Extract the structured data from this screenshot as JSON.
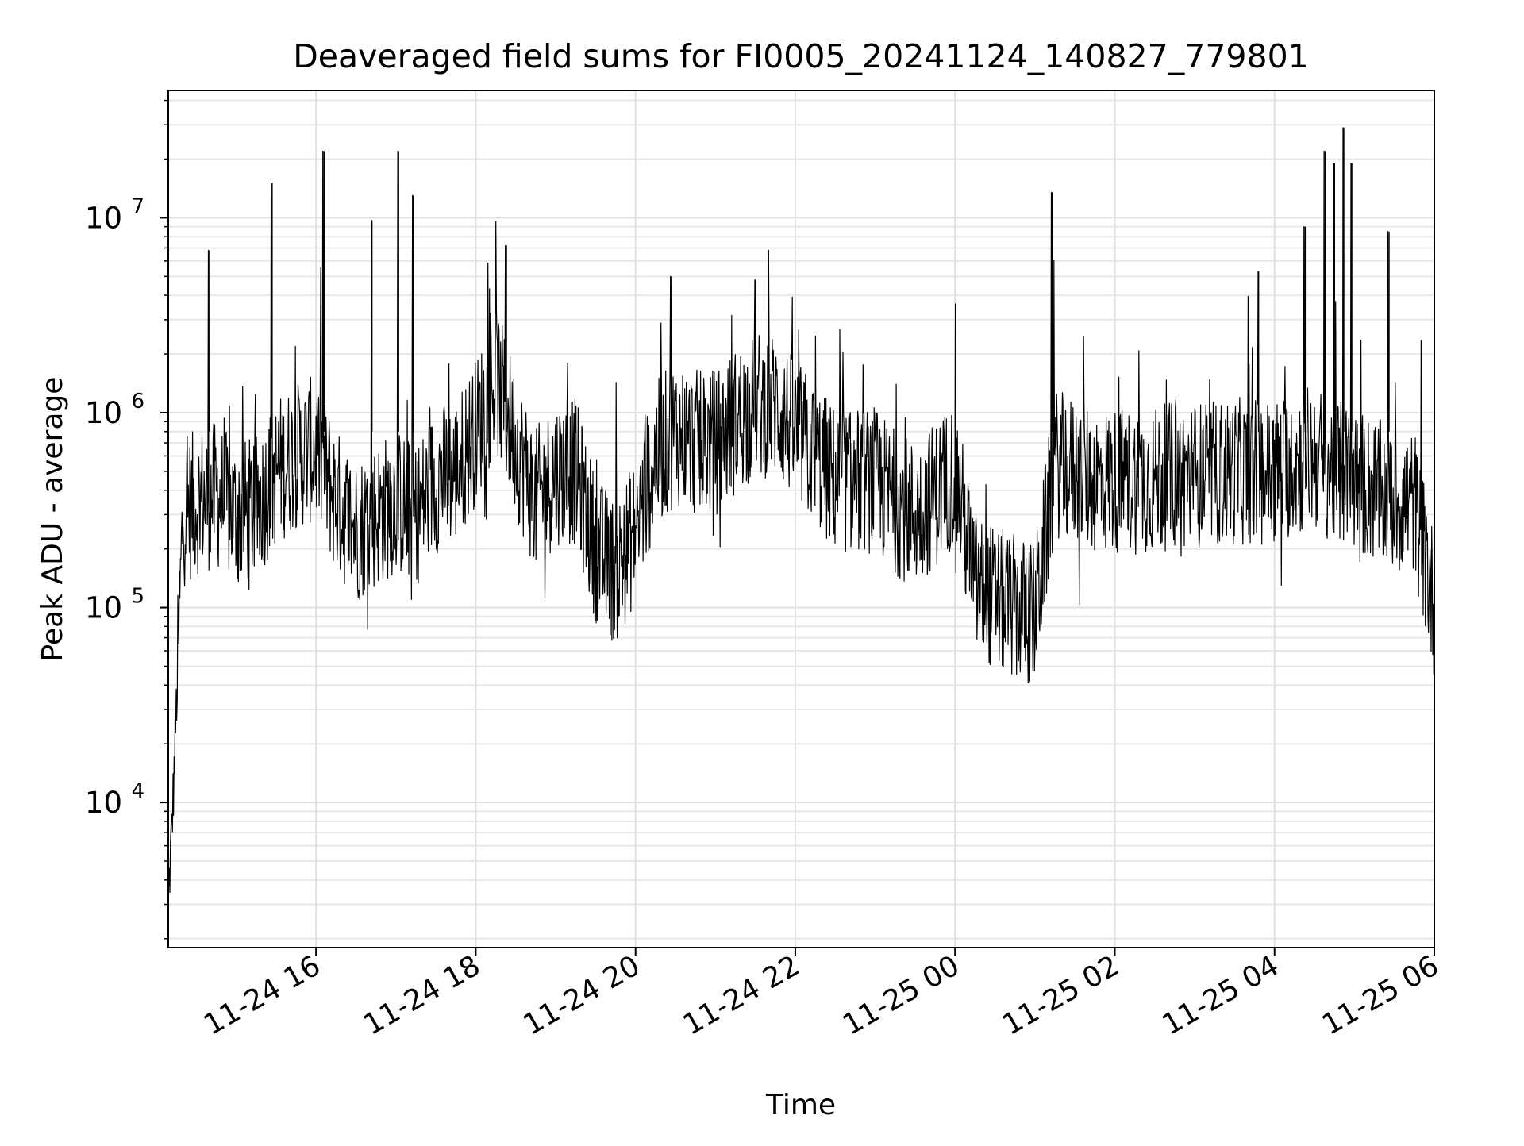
{
  "chart_data": {
    "type": "line",
    "title": "Deaveraged field sums for FI0005_20241124_140827_779801",
    "xlabel": "Time",
    "ylabel": "Peak ADU - average",
    "yscale": "log",
    "grid": "on (major and minor)",
    "line_color": "#000000",
    "xlim": [
      "2024-11-24 14:09",
      "2024-11-25 06:00"
    ],
    "ylim": [
      1800,
      45000000
    ],
    "x_ticks": [
      "2024-11-24 16:00",
      "2024-11-24 18:00",
      "2024-11-24 20:00",
      "2024-11-24 22:00",
      "2024-11-25 00:00",
      "2024-11-25 02:00",
      "2024-11-25 04:00",
      "2024-11-25 06:00"
    ],
    "x_tick_labels": [
      "11-24 16",
      "11-24 18",
      "11-24 20",
      "11-24 22",
      "11-25 00",
      "11-25 02",
      "11-25 04",
      "11-25 06"
    ],
    "y_ticks": [
      10000,
      100000,
      1000000,
      10000000
    ],
    "y_tick_labels": [
      {
        "base": "10",
        "exp": "4"
      },
      {
        "base": "10",
        "exp": "5"
      },
      {
        "base": "10",
        "exp": "6"
      },
      {
        "base": "10",
        "exp": "7"
      }
    ],
    "series": [
      {
        "x": [
          "2024-11-24 14:09",
          "2024-11-24 14:11",
          "2024-11-24 14:13",
          "2024-11-24 14:15",
          "2024-11-24 14:20",
          "2024-11-24 14:30",
          "2024-11-24 14:45",
          "2024-11-24 15:00",
          "2024-11-24 15:15",
          "2024-11-24 15:30",
          "2024-11-24 15:45",
          "2024-11-24 16:00",
          "2024-11-24 16:15",
          "2024-11-24 16:30",
          "2024-11-24 16:45",
          "2024-11-24 17:00",
          "2024-11-24 17:15",
          "2024-11-24 17:30",
          "2024-11-24 17:45",
          "2024-11-24 18:00",
          "2024-11-24 18:15",
          "2024-11-24 18:30",
          "2024-11-24 18:45",
          "2024-11-24 19:00",
          "2024-11-24 19:15",
          "2024-11-24 19:30",
          "2024-11-24 19:45",
          "2024-11-24 20:00",
          "2024-11-24 20:15",
          "2024-11-24 20:30",
          "2024-11-24 20:45",
          "2024-11-24 21:00",
          "2024-11-24 21:15",
          "2024-11-24 21:30",
          "2024-11-24 21:45",
          "2024-11-24 22:00",
          "2024-11-24 22:15",
          "2024-11-24 22:30",
          "2024-11-24 22:45",
          "2024-11-24 23:00",
          "2024-11-24 23:15",
          "2024-11-24 23:30",
          "2024-11-24 23:45",
          "2024-11-25 00:00",
          "2024-11-25 00:15",
          "2024-11-25 00:30",
          "2024-11-25 00:45",
          "2024-11-25 01:00",
          "2024-11-25 01:15",
          "2024-11-25 01:30",
          "2024-11-25 01:45",
          "2024-11-25 02:00",
          "2024-11-25 02:15",
          "2024-11-25 02:30",
          "2024-11-25 02:45",
          "2024-11-25 03:00",
          "2024-11-25 03:15",
          "2024-11-25 03:30",
          "2024-11-25 03:45",
          "2024-11-25 04:00",
          "2024-11-25 04:15",
          "2024-11-25 04:30",
          "2024-11-25 04:45",
          "2024-11-25 05:00",
          "2024-11-25 05:15",
          "2024-11-25 05:30",
          "2024-11-25 05:45",
          "2024-11-25 06:00"
        ],
        "y": [
          3000,
          6000,
          12000,
          30000,
          300000,
          350000,
          380000,
          300000,
          320000,
          500000,
          600000,
          650000,
          350000,
          250000,
          300000,
          350000,
          300000,
          450000,
          500000,
          800000,
          1500000,
          700000,
          350000,
          500000,
          500000,
          200000,
          150000,
          250000,
          600000,
          800000,
          700000,
          700000,
          900000,
          1100000,
          1100000,
          800000,
          600000,
          450000,
          450000,
          450000,
          350000,
          300000,
          380000,
          500000,
          130000,
          110000,
          100000,
          90000,
          550000,
          500000,
          450000,
          450000,
          450000,
          450000,
          480000,
          480000,
          480000,
          500000,
          500000,
          500000,
          550000,
          600000,
          500000,
          450000,
          400000,
          350000,
          350000,
          100000
        ]
      }
    ],
    "spikes": [
      {
        "x": "2024-11-24 14:40",
        "y": 6800000
      },
      {
        "x": "2024-11-24 15:27",
        "y": 15000000
      },
      {
        "x": "2024-11-24 16:06",
        "y": 22000000
      },
      {
        "x": "2024-11-24 16:42",
        "y": 9700000
      },
      {
        "x": "2024-11-24 17:02",
        "y": 22000000
      },
      {
        "x": "2024-11-24 17:13",
        "y": 13000000
      },
      {
        "x": "2024-11-24 18:23",
        "y": 7200000
      },
      {
        "x": "2024-11-24 20:27",
        "y": 5000000
      },
      {
        "x": "2024-11-24 21:30",
        "y": 4800000
      },
      {
        "x": "2024-11-25 01:13",
        "y": 13500000
      },
      {
        "x": "2024-11-25 03:48",
        "y": 5300000
      },
      {
        "x": "2024-11-25 04:23",
        "y": 9000000
      },
      {
        "x": "2024-11-25 04:38",
        "y": 22000000
      },
      {
        "x": "2024-11-25 04:45",
        "y": 19000000
      },
      {
        "x": "2024-11-25 04:52",
        "y": 29000000
      },
      {
        "x": "2024-11-25 04:58",
        "y": 19000000
      },
      {
        "x": "2024-11-25 05:26",
        "y": 8500000
      }
    ]
  }
}
